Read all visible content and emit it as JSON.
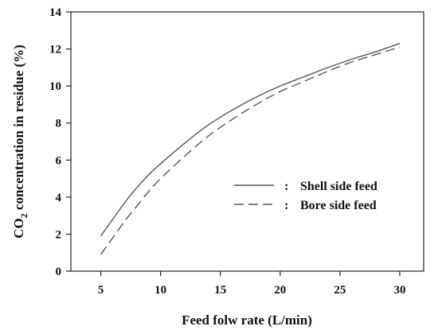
{
  "chart_data": {
    "type": "line",
    "xlabel": "Feed folw rate (L/min)",
    "ylabel_main": "CO",
    "ylabel_sub": "2",
    "ylabel_rest": " concentration in residue (%)",
    "xlim": [
      2.5,
      32
    ],
    "ylim": [
      0,
      14
    ],
    "xticks": [
      5,
      10,
      15,
      20,
      25,
      30
    ],
    "yticks": [
      0,
      2,
      4,
      6,
      8,
      10,
      12,
      14
    ],
    "grid": false,
    "legend_position": "center-right",
    "legend_separator": ":",
    "series": [
      {
        "name": "Shell side feed",
        "style": "solid",
        "color": "#555555",
        "x": [
          5,
          6,
          7,
          8,
          9,
          10,
          12,
          14,
          16,
          18,
          20,
          22,
          24,
          26,
          28,
          30
        ],
        "y": [
          1.9,
          2.8,
          3.7,
          4.5,
          5.2,
          5.8,
          6.9,
          7.9,
          8.7,
          9.4,
          10.0,
          10.5,
          11.0,
          11.45,
          11.85,
          12.3
        ]
      },
      {
        "name": "Bore side feed",
        "style": "dashed",
        "color": "#555555",
        "x": [
          5,
          6,
          7,
          8,
          9,
          10,
          12,
          14,
          16,
          18,
          20,
          22,
          24,
          26,
          28,
          30
        ],
        "y": [
          0.9,
          1.8,
          2.7,
          3.5,
          4.3,
          5.0,
          6.2,
          7.3,
          8.2,
          9.0,
          9.7,
          10.25,
          10.8,
          11.3,
          11.7,
          12.1
        ]
      }
    ]
  }
}
